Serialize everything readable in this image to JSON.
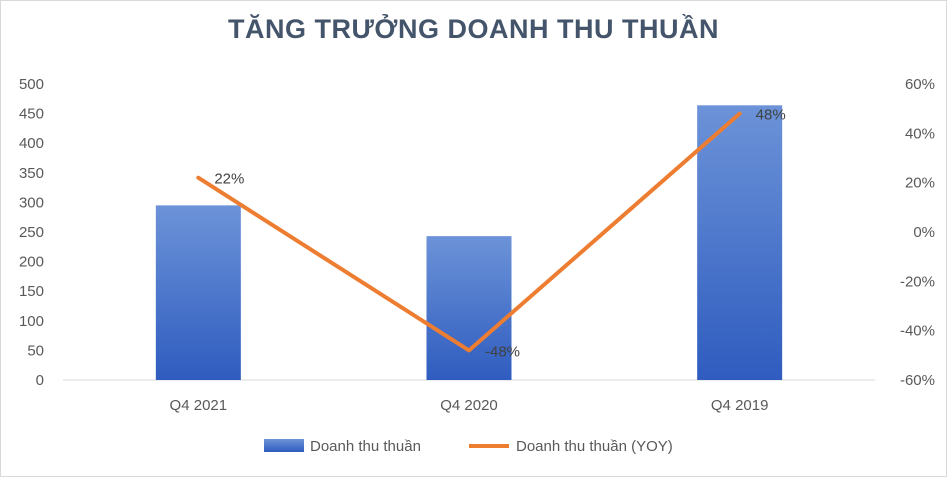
{
  "chart_data": {
    "type": "bar",
    "title": "TĂNG TRƯỞNG DOANH THU THUẦN",
    "categories": [
      "Q4 2021",
      "Q4 2020",
      "Q4 2019"
    ],
    "series": [
      {
        "name": "Doanh thu thuần",
        "type": "bar",
        "axis": "left",
        "values": [
          295,
          243,
          464
        ],
        "color": "#4472c4"
      },
      {
        "name": "Doanh thu thuần (YOY)",
        "type": "line",
        "axis": "right",
        "values": [
          22,
          -48,
          48
        ],
        "data_labels": [
          "22%",
          "-48%",
          "48%"
        ],
        "color": "#ed7d31"
      }
    ],
    "y_left": {
      "min": 0,
      "max": 500,
      "step": 50,
      "tick_labels": [
        "0",
        "50",
        "100",
        "150",
        "200",
        "250",
        "300",
        "350",
        "400",
        "450",
        "500"
      ]
    },
    "y_right": {
      "min": -60,
      "max": 60,
      "step": 20,
      "tick_labels": [
        "-60%",
        "-40%",
        "-20%",
        "0%",
        "20%",
        "40%",
        "60%"
      ]
    },
    "grid": false,
    "legend_position": "bottom"
  }
}
